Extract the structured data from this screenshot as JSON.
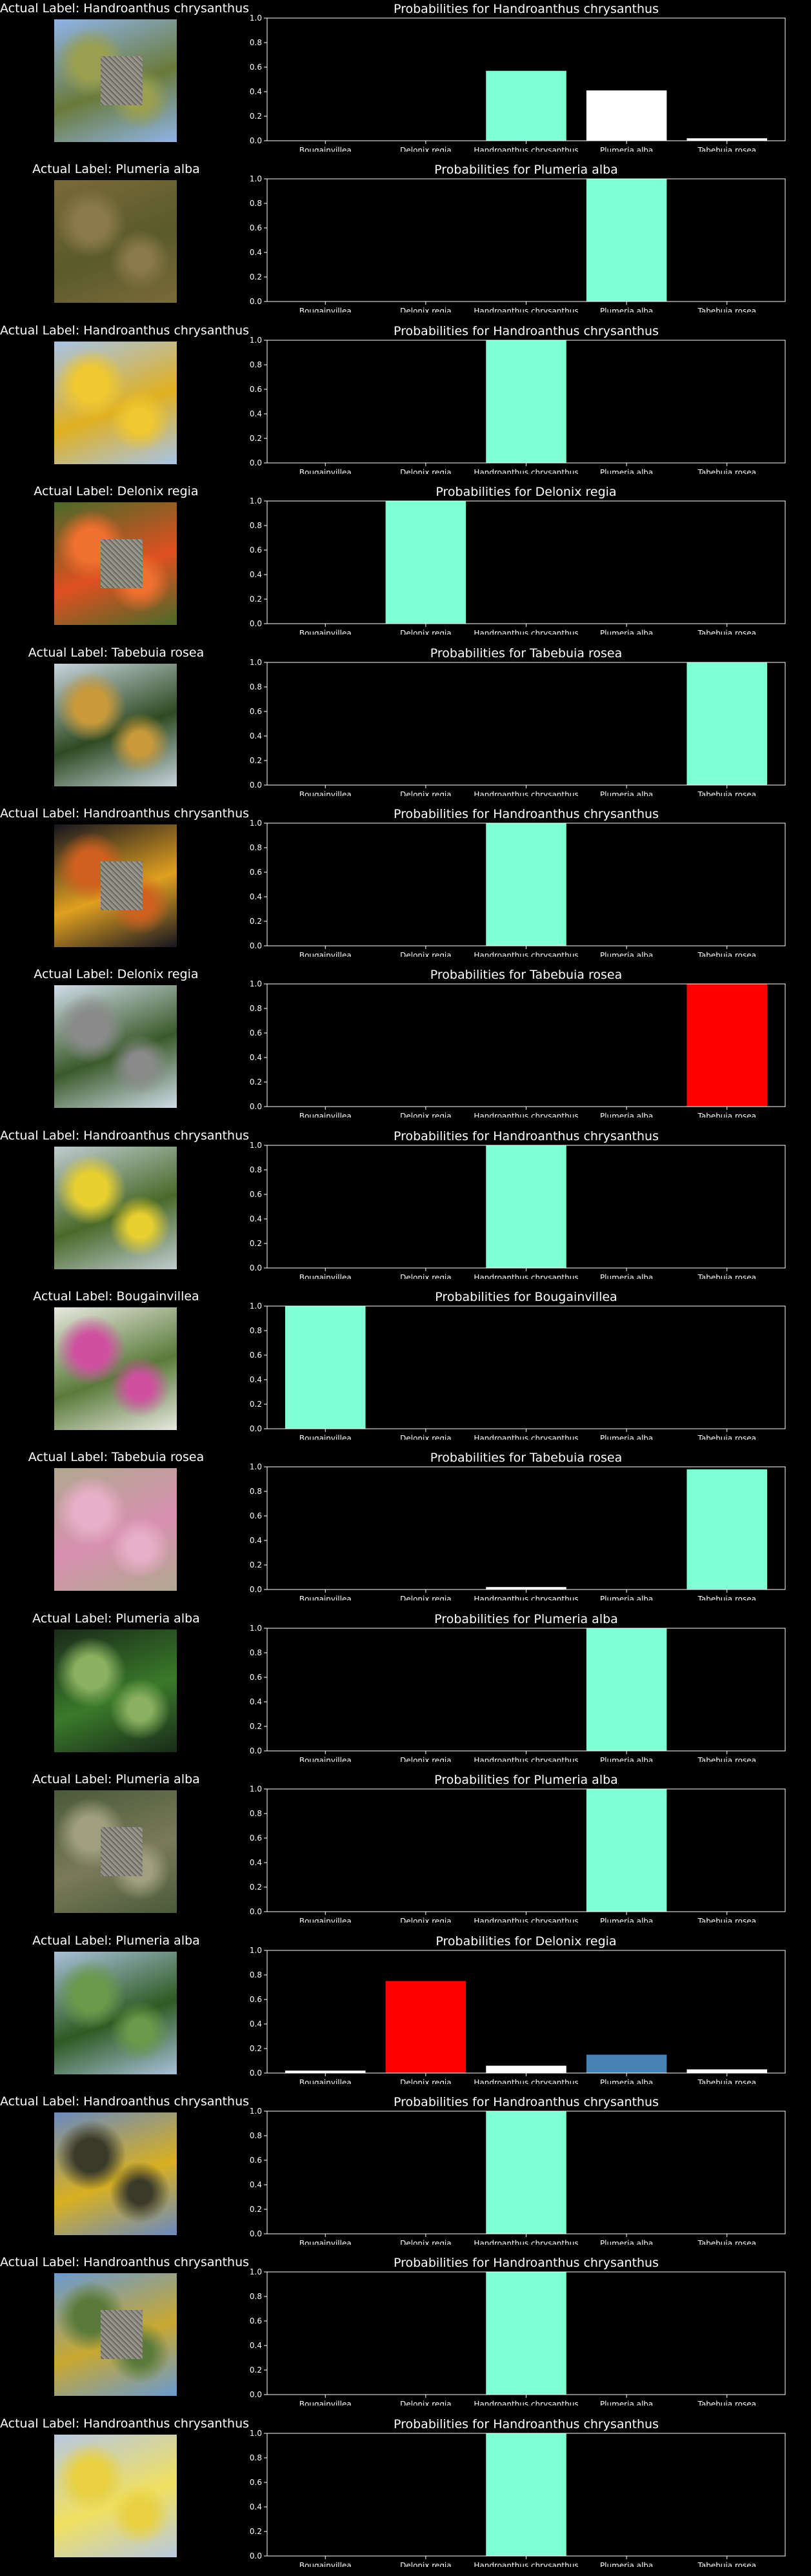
{
  "categories": [
    "Bougainvillea",
    "Delonix regia",
    "Handroanthus chrysanthus",
    "Plumeria alba",
    "Tabebuia rosea"
  ],
  "colors": {
    "background": "#000000",
    "predicted_correct": "#7fffd4",
    "predicted_wrong": "#ff0000",
    "actual_when_wrong": "#4682b4",
    "other": "#ffffff"
  },
  "chart_data": [
    {
      "type": "bar",
      "image_title": "Actual Label: Handroanthus chrysanthus",
      "title": "Probabilities for Handroanthus chrysanthus",
      "categories": [
        "Bougainvillea",
        "Delonix regia",
        "Handroanthus chrysanthus",
        "Plumeria alba",
        "Tabebuia rosea"
      ],
      "values": [
        0.0,
        0.0,
        0.57,
        0.41,
        0.02
      ],
      "bar_colors": [
        "#ffffff",
        "#ffffff",
        "#7fffd4",
        "#ffffff",
        "#ffffff"
      ],
      "ylim": [
        0,
        1
      ],
      "yticks": [
        "0.0",
        "0.2",
        "0.4",
        "0.6",
        "0.8",
        "1.0"
      ],
      "thumb": {
        "sky": "#8fb4e8",
        "foliage": "#6a7a3a",
        "accent": "#9aa050",
        "patch": true
      }
    },
    {
      "type": "bar",
      "image_title": "Actual Label: Plumeria alba",
      "title": "Probabilities for Plumeria alba",
      "categories": [
        "Bougainvillea",
        "Delonix regia",
        "Handroanthus chrysanthus",
        "Plumeria alba",
        "Tabebuia rosea"
      ],
      "values": [
        0.0,
        0.0,
        0.0,
        1.0,
        0.0
      ],
      "bar_colors": [
        "#ffffff",
        "#ffffff",
        "#ffffff",
        "#7fffd4",
        "#ffffff"
      ],
      "ylim": [
        0,
        1
      ],
      "yticks": [
        "0.0",
        "0.2",
        "0.4",
        "0.6",
        "0.8",
        "1.0"
      ],
      "thumb": {
        "sky": "#7a6a3a",
        "foliage": "#5a5a2a",
        "accent": "#8a7a4a",
        "patch": false
      }
    },
    {
      "type": "bar",
      "image_title": "Actual Label: Handroanthus chrysanthus",
      "title": "Probabilities for Handroanthus chrysanthus",
      "categories": [
        "Bougainvillea",
        "Delonix regia",
        "Handroanthus chrysanthus",
        "Plumeria alba",
        "Tabebuia rosea"
      ],
      "values": [
        0.0,
        0.0,
        1.0,
        0.0,
        0.0
      ],
      "bar_colors": [
        "#ffffff",
        "#ffffff",
        "#7fffd4",
        "#ffffff",
        "#ffffff"
      ],
      "ylim": [
        0,
        1
      ],
      "yticks": [
        "0.0",
        "0.2",
        "0.4",
        "0.6",
        "0.8",
        "1.0"
      ],
      "thumb": {
        "sky": "#a8c4e8",
        "foliage": "#e0b020",
        "accent": "#f0c830",
        "patch": false
      }
    },
    {
      "type": "bar",
      "image_title": "Actual Label: Delonix regia",
      "title": "Probabilities for Delonix regia",
      "categories": [
        "Bougainvillea",
        "Delonix regia",
        "Handroanthus chrysanthus",
        "Plumeria alba",
        "Tabebuia rosea"
      ],
      "values": [
        0.0,
        1.0,
        0.0,
        0.0,
        0.0
      ],
      "bar_colors": [
        "#ffffff",
        "#7fffd4",
        "#ffffff",
        "#ffffff",
        "#ffffff"
      ],
      "ylim": [
        0,
        1
      ],
      "yticks": [
        "0.0",
        "0.2",
        "0.4",
        "0.6",
        "0.8",
        "1.0"
      ],
      "thumb": {
        "sky": "#4a6a2a",
        "foliage": "#e05020",
        "accent": "#f07030",
        "patch": true
      }
    },
    {
      "type": "bar",
      "image_title": "Actual Label: Tabebuia rosea",
      "title": "Probabilities for Tabebuia rosea",
      "categories": [
        "Bougainvillea",
        "Delonix regia",
        "Handroanthus chrysanthus",
        "Plumeria alba",
        "Tabebuia rosea"
      ],
      "values": [
        0.0,
        0.0,
        0.0,
        0.0,
        1.0
      ],
      "bar_colors": [
        "#ffffff",
        "#ffffff",
        "#ffffff",
        "#ffffff",
        "#7fffd4"
      ],
      "ylim": [
        0,
        1
      ],
      "yticks": [
        "0.0",
        "0.2",
        "0.4",
        "0.6",
        "0.8",
        "1.0"
      ],
      "thumb": {
        "sky": "#c8d4dc",
        "foliage": "#2e4a22",
        "accent": "#c89a3a",
        "patch": false
      }
    },
    {
      "type": "bar",
      "image_title": "Actual Label: Handroanthus chrysanthus",
      "title": "Probabilities for Handroanthus chrysanthus",
      "categories": [
        "Bougainvillea",
        "Delonix regia",
        "Handroanthus chrysanthus",
        "Plumeria alba",
        "Tabebuia rosea"
      ],
      "values": [
        0.0,
        0.0,
        1.0,
        0.0,
        0.0
      ],
      "bar_colors": [
        "#ffffff",
        "#ffffff",
        "#7fffd4",
        "#ffffff",
        "#ffffff"
      ],
      "ylim": [
        0,
        1
      ],
      "yticks": [
        "0.0",
        "0.2",
        "0.4",
        "0.6",
        "0.8",
        "1.0"
      ],
      "thumb": {
        "sky": "#151520",
        "foliage": "#e0a020",
        "accent": "#d06020",
        "patch": true
      }
    },
    {
      "type": "bar",
      "image_title": "Actual Label: Delonix regia",
      "title": "Probabilities for Tabebuia rosea",
      "categories": [
        "Bougainvillea",
        "Delonix regia",
        "Handroanthus chrysanthus",
        "Plumeria alba",
        "Tabebuia rosea"
      ],
      "values": [
        0.0,
        0.0,
        0.0,
        0.0,
        1.0
      ],
      "bar_colors": [
        "#ffffff",
        "#4682b4",
        "#ffffff",
        "#ffffff",
        "#ff0000"
      ],
      "ylim": [
        0,
        1
      ],
      "yticks": [
        "0.0",
        "0.2",
        "0.4",
        "0.6",
        "0.8",
        "1.0"
      ],
      "thumb": {
        "sky": "#d0dce8",
        "foliage": "#3a5a2a",
        "accent": "#8a8a8a",
        "patch": false
      }
    },
    {
      "type": "bar",
      "image_title": "Actual Label: Handroanthus chrysanthus",
      "title": "Probabilities for Handroanthus chrysanthus",
      "categories": [
        "Bougainvillea",
        "Delonix regia",
        "Handroanthus chrysanthus",
        "Plumeria alba",
        "Tabebuia rosea"
      ],
      "values": [
        0.0,
        0.0,
        1.0,
        0.0,
        0.0
      ],
      "bar_colors": [
        "#ffffff",
        "#ffffff",
        "#7fffd4",
        "#ffffff",
        "#ffffff"
      ],
      "ylim": [
        0,
        1
      ],
      "yticks": [
        "0.0",
        "0.2",
        "0.4",
        "0.6",
        "0.8",
        "1.0"
      ],
      "thumb": {
        "sky": "#c0ccd0",
        "foliage": "#4a6a2a",
        "accent": "#e8d030",
        "patch": false
      }
    },
    {
      "type": "bar",
      "image_title": "Actual Label: Bougainvillea",
      "title": "Probabilities for Bougainvillea",
      "categories": [
        "Bougainvillea",
        "Delonix regia",
        "Handroanthus chrysanthus",
        "Plumeria alba",
        "Tabebuia rosea"
      ],
      "values": [
        1.0,
        0.0,
        0.0,
        0.0,
        0.0
      ],
      "bar_colors": [
        "#7fffd4",
        "#ffffff",
        "#ffffff",
        "#ffffff",
        "#ffffff"
      ],
      "ylim": [
        0,
        1
      ],
      "yticks": [
        "0.0",
        "0.2",
        "0.4",
        "0.6",
        "0.8",
        "1.0"
      ],
      "thumb": {
        "sky": "#e8e8e0",
        "foliage": "#5a7a3a",
        "accent": "#d050a0",
        "patch": false
      }
    },
    {
      "type": "bar",
      "image_title": "Actual Label: Tabebuia rosea",
      "title": "Probabilities for Tabebuia rosea",
      "categories": [
        "Bougainvillea",
        "Delonix regia",
        "Handroanthus chrysanthus",
        "Plumeria alba",
        "Tabebuia rosea"
      ],
      "values": [
        0.0,
        0.0,
        0.02,
        0.0,
        0.98
      ],
      "bar_colors": [
        "#ffffff",
        "#ffffff",
        "#ffffff",
        "#ffffff",
        "#7fffd4"
      ],
      "ylim": [
        0,
        1
      ],
      "yticks": [
        "0.0",
        "0.2",
        "0.4",
        "0.6",
        "0.8",
        "1.0"
      ],
      "thumb": {
        "sky": "#b0a890",
        "foliage": "#d890b0",
        "accent": "#e8b0c8",
        "patch": false
      }
    },
    {
      "type": "bar",
      "image_title": "Actual Label: Plumeria alba",
      "title": "Probabilities for Plumeria alba",
      "categories": [
        "Bougainvillea",
        "Delonix regia",
        "Handroanthus chrysanthus",
        "Plumeria alba",
        "Tabebuia rosea"
      ],
      "values": [
        0.0,
        0.0,
        0.0,
        1.0,
        0.0
      ],
      "bar_colors": [
        "#ffffff",
        "#ffffff",
        "#ffffff",
        "#7fffd4",
        "#ffffff"
      ],
      "ylim": [
        0,
        1
      ],
      "yticks": [
        "0.0",
        "0.2",
        "0.4",
        "0.6",
        "0.8",
        "1.0"
      ],
      "thumb": {
        "sky": "#1a2a1a",
        "foliage": "#3a7a2a",
        "accent": "#8ab060",
        "patch": false
      }
    },
    {
      "type": "bar",
      "image_title": "Actual Label: Plumeria alba",
      "title": "Probabilities for Plumeria alba",
      "categories": [
        "Bougainvillea",
        "Delonix regia",
        "Handroanthus chrysanthus",
        "Plumeria alba",
        "Tabebuia rosea"
      ],
      "values": [
        0.0,
        0.0,
        0.0,
        1.0,
        0.0
      ],
      "bar_colors": [
        "#ffffff",
        "#ffffff",
        "#ffffff",
        "#7fffd4",
        "#ffffff"
      ],
      "ylim": [
        0,
        1
      ],
      "yticks": [
        "0.0",
        "0.2",
        "0.4",
        "0.6",
        "0.8",
        "1.0"
      ],
      "thumb": {
        "sky": "#4a5a3a",
        "foliage": "#7a7a5a",
        "accent": "#a0a080",
        "patch": true
      }
    },
    {
      "type": "bar",
      "image_title": "Actual Label: Plumeria alba",
      "title": "Probabilities for Delonix regia",
      "categories": [
        "Bougainvillea",
        "Delonix regia",
        "Handroanthus chrysanthus",
        "Plumeria alba",
        "Tabebuia rosea"
      ],
      "values": [
        0.02,
        0.75,
        0.06,
        0.15,
        0.03
      ],
      "bar_colors": [
        "#ffffff",
        "#ff0000",
        "#ffffff",
        "#4682b4",
        "#ffffff"
      ],
      "ylim": [
        0,
        1
      ],
      "yticks": [
        "0.0",
        "0.2",
        "0.4",
        "0.6",
        "0.8",
        "1.0"
      ],
      "thumb": {
        "sky": "#a8c0d8",
        "foliage": "#2e5a22",
        "accent": "#6a9a4a",
        "patch": false
      }
    },
    {
      "type": "bar",
      "image_title": "Actual Label: Handroanthus chrysanthus",
      "title": "Probabilities for Handroanthus chrysanthus",
      "categories": [
        "Bougainvillea",
        "Delonix regia",
        "Handroanthus chrysanthus",
        "Plumeria alba",
        "Tabebuia rosea"
      ],
      "values": [
        0.0,
        0.0,
        1.0,
        0.0,
        0.0
      ],
      "bar_colors": [
        "#ffffff",
        "#ffffff",
        "#7fffd4",
        "#ffffff",
        "#ffffff"
      ],
      "ylim": [
        0,
        1
      ],
      "yticks": [
        "0.0",
        "0.2",
        "0.4",
        "0.6",
        "0.8",
        "1.0"
      ],
      "thumb": {
        "sky": "#6a8ac0",
        "foliage": "#d8b020",
        "accent": "#3a3a2a",
        "patch": false
      }
    },
    {
      "type": "bar",
      "image_title": "Actual Label: Handroanthus chrysanthus",
      "title": "Probabilities for Handroanthus chrysanthus",
      "categories": [
        "Bougainvillea",
        "Delonix regia",
        "Handroanthus chrysanthus",
        "Plumeria alba",
        "Tabebuia rosea"
      ],
      "values": [
        0.0,
        0.0,
        1.0,
        0.0,
        0.0
      ],
      "bar_colors": [
        "#ffffff",
        "#ffffff",
        "#7fffd4",
        "#ffffff",
        "#ffffff"
      ],
      "ylim": [
        0,
        1
      ],
      "yticks": [
        "0.0",
        "0.2",
        "0.4",
        "0.6",
        "0.8",
        "1.0"
      ],
      "thumb": {
        "sky": "#6a9ad0",
        "foliage": "#c8a830",
        "accent": "#5a7a3a",
        "patch": true
      }
    },
    {
      "type": "bar",
      "image_title": "Actual Label: Handroanthus chrysanthus",
      "title": "Probabilities for Handroanthus chrysanthus",
      "categories": [
        "Bougainvillea",
        "Delonix regia",
        "Handroanthus chrysanthus",
        "Plumeria alba",
        "Tabebuia rosea"
      ],
      "values": [
        0.0,
        0.0,
        1.0,
        0.0,
        0.0
      ],
      "bar_colors": [
        "#ffffff",
        "#ffffff",
        "#7fffd4",
        "#ffffff",
        "#ffffff"
      ],
      "ylim": [
        0,
        1
      ],
      "yticks": [
        "0.0",
        "0.2",
        "0.4",
        "0.6",
        "0.8",
        "1.0"
      ],
      "thumb": {
        "sky": "#b8c8e0",
        "foliage": "#f0e060",
        "accent": "#e8d040",
        "patch": false
      }
    }
  ]
}
